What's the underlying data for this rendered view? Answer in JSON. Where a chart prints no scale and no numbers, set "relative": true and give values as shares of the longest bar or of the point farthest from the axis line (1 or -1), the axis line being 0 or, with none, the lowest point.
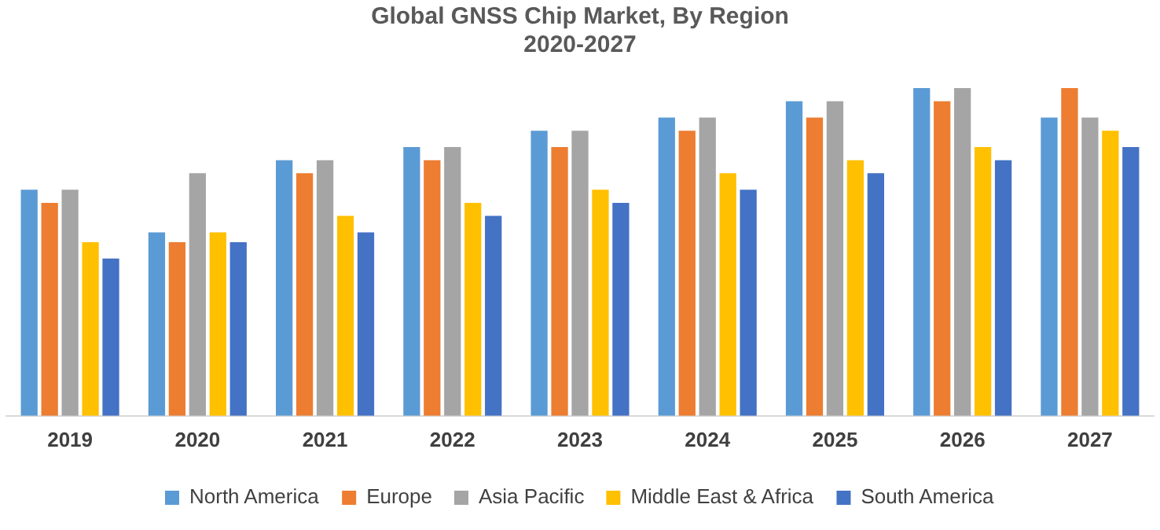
{
  "chart_data": {
    "type": "bar",
    "title": [
      "Global GNSS Chip Market, By Region",
      "2020-2027"
    ],
    "relative": true,
    "legend": "bottom",
    "grid": false,
    "categories": [
      "2019",
      "2020",
      "2021",
      "2022",
      "2023",
      "2024",
      "2025",
      "2026",
      "2027"
    ],
    "series": [
      {
        "name": "North America",
        "color": "#5b9bd5",
        "values": [
          0.69,
          0.56,
          0.78,
          0.82,
          0.87,
          0.91,
          0.96,
          1,
          0.91
        ]
      },
      {
        "name": "Europe",
        "color": "#ed7d31",
        "values": [
          0.65,
          0.53,
          0.74,
          0.78,
          0.82,
          0.87,
          0.91,
          0.96,
          1
        ]
      },
      {
        "name": "Asia Pacific",
        "color": "#a5a5a5",
        "values": [
          0.69,
          0.74,
          0.78,
          0.82,
          0.87,
          0.91,
          0.96,
          1,
          0.91
        ]
      },
      {
        "name": "Middle East & Africa",
        "color": "#ffc000",
        "values": [
          0.53,
          0.56,
          0.61,
          0.65,
          0.69,
          0.74,
          0.78,
          0.82,
          0.87
        ]
      },
      {
        "name": "South America",
        "color": "#4472c4",
        "values": [
          0.48,
          0.53,
          0.56,
          0.61,
          0.65,
          0.69,
          0.74,
          0.78,
          0.82
        ]
      }
    ]
  }
}
